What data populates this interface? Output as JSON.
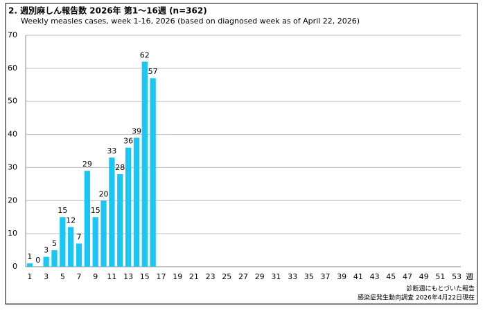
{
  "chart_data": {
    "type": "bar",
    "title": "2. 週別麻しん報告数  2026年 第1～16週 (n=362)",
    "subtitle": "Weekly measles cases, week 1-16, 2026 (based on diagnosed week as of April 22, 2026)",
    "x_label": "週",
    "notes": [
      "診断週にもとづいた報告",
      "感染症発生動向調査 2026年4月22日現在"
    ],
    "categories": [
      "1",
      null,
      "3",
      null,
      "5",
      null,
      "7",
      null,
      "9",
      null,
      "11",
      null,
      "13",
      null,
      "15",
      null,
      "17",
      null,
      "19",
      null,
      "21",
      null,
      "23",
      null,
      "25",
      null,
      "27",
      null,
      "29",
      null,
      "31",
      null,
      "33",
      null,
      "35",
      null,
      "37",
      null,
      "39",
      null,
      "41",
      null,
      "43",
      null,
      "45",
      null,
      "47",
      null,
      "49",
      null,
      "51",
      null,
      "53"
    ],
    "values": [
      1,
      0,
      3,
      5,
      15,
      12,
      7,
      29,
      15,
      20,
      33,
      28,
      36,
      39,
      62,
      57,
      null,
      null,
      null,
      null,
      null,
      null,
      null,
      null,
      null,
      null,
      null,
      null,
      null,
      null,
      null,
      null,
      null,
      null,
      null,
      null,
      null,
      null,
      null,
      null,
      null,
      null,
      null,
      null,
      null,
      null,
      null,
      null,
      null,
      null,
      null,
      null,
      null
    ],
    "color": "#1cc6f4",
    "ylim": [
      0,
      70
    ],
    "yticks": [
      0,
      10,
      20,
      30,
      40,
      50,
      60,
      70
    ],
    "grid": true
  }
}
